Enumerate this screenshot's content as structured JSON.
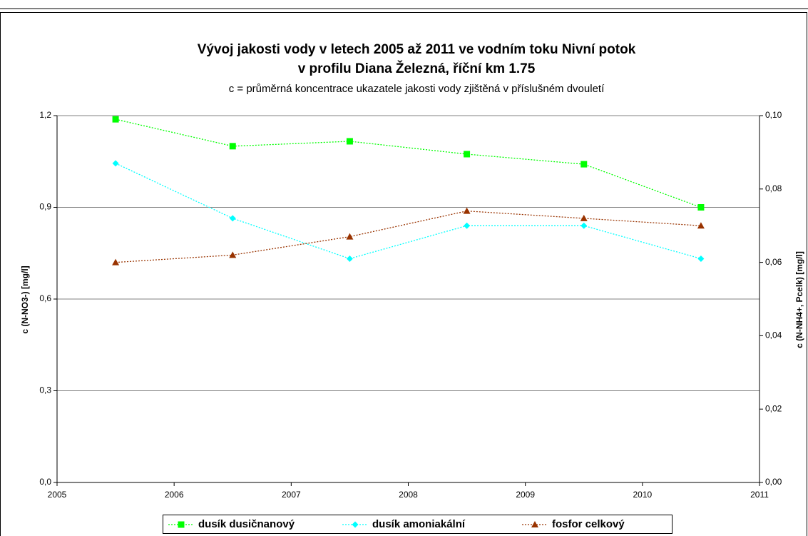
{
  "chart_data": {
    "type": "line",
    "title": "Vývoj jakosti vody v letech 2005 až 2011 ve vodním toku Nivní potok",
    "title_line2": "v profilu Diana Železná, říční km 1.75",
    "subtitle": "c = průměrná koncentrace ukazatele jakosti vody zjištěná v příslušném dvouletí",
    "ylabel": "c (N-NO3-) [mg/l]",
    "y2label": "c (N-NH4+, Pcelk) [mg/l]",
    "x": [
      2005.5,
      2006.5,
      2007.5,
      2008.5,
      2009.5,
      2010.5
    ],
    "xlim": [
      2005,
      2011
    ],
    "xticks": [
      2005,
      2006,
      2007,
      2008,
      2009,
      2010,
      2011
    ],
    "ylim": [
      0,
      1.2
    ],
    "yticks": [
      {
        "value": 0,
        "label": "0,0"
      },
      {
        "value": 0.3,
        "label": "0,3"
      },
      {
        "value": 0.6,
        "label": "0,6"
      },
      {
        "value": 0.9,
        "label": "0,9"
      },
      {
        "value": 1.2,
        "label": "1,2"
      }
    ],
    "y2lim": [
      0,
      0.1
    ],
    "y2ticks": [
      {
        "value": 0,
        "label": "0,00"
      },
      {
        "value": 0.02,
        "label": "0,02"
      },
      {
        "value": 0.04,
        "label": "0,04"
      },
      {
        "value": 0.06,
        "label": "0,06"
      },
      {
        "value": 0.08,
        "label": "0,08"
      },
      {
        "value": 0.1,
        "label": "0,10"
      }
    ],
    "grid": true,
    "legend": "bottom",
    "series": [
      {
        "name": "dusík dusičnanový",
        "color": "#00ff00",
        "marker": "square",
        "values": [
          1.188,
          1.1,
          1.116,
          1.074,
          1.041,
          0.9
        ]
      },
      {
        "name": "dusík amoniakální",
        "color": "#00ffff",
        "marker": "diamond",
        "axis": "y2",
        "values": [
          0.087,
          0.072,
          0.061,
          0.07,
          0.07,
          0.061
        ]
      },
      {
        "name": "fosfor celkový",
        "color": "#993300",
        "marker": "triangle",
        "axis": "y2",
        "values": [
          0.06,
          0.062,
          0.067,
          0.074,
          0.072,
          0.07
        ]
      }
    ]
  }
}
